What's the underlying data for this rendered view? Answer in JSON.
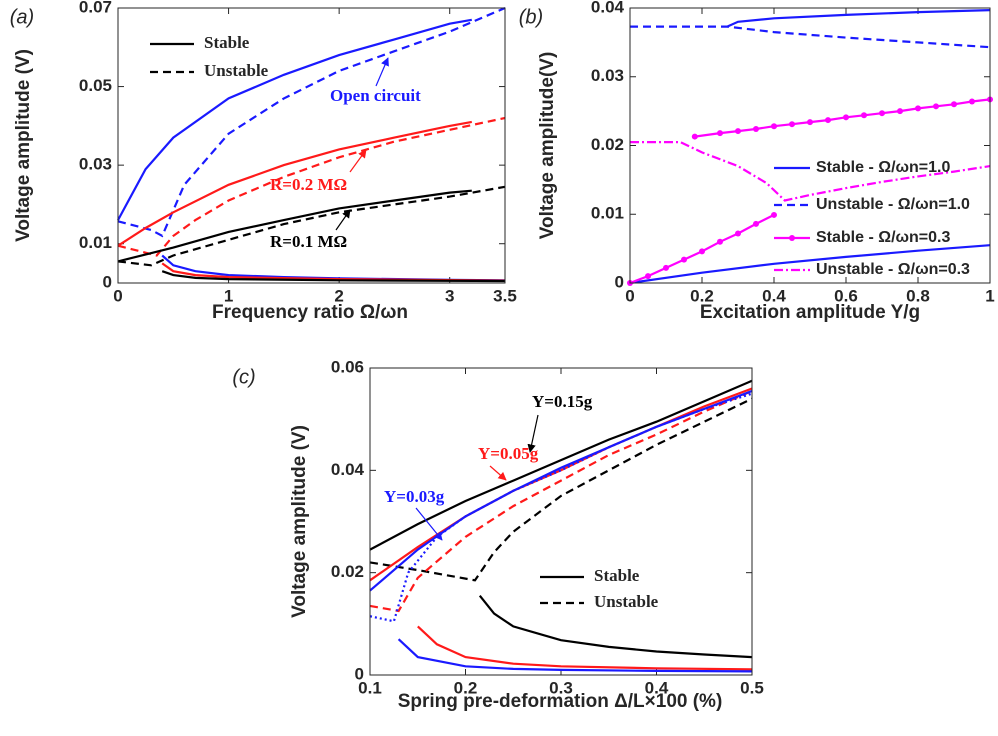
{
  "chart_data": [
    {
      "type": "line",
      "panel": "(a)",
      "xlabel": "Frequency ratio Ω/ωn",
      "ylabel": "Voltage amplitude (V)",
      "xlim": [
        0,
        3.5
      ],
      "xticks": [
        0,
        1,
        2,
        3,
        3.5
      ],
      "ylim": [
        0,
        0.07
      ],
      "yticks": [
        0,
        0.01,
        0.03,
        0.05,
        0.07
      ],
      "legend": [
        {
          "label": "Stable",
          "style": "solid"
        },
        {
          "label": "Unstable",
          "style": "dashed"
        }
      ],
      "annotations": [
        {
          "text": "Open circuit",
          "color": "#1a1aff"
        },
        {
          "text": "R=0.2 MΩ",
          "color": "#ff1a1a"
        },
        {
          "text": "R=0.1 MΩ",
          "color": "#000000"
        }
      ],
      "series": [
        {
          "color": "#1a1aff",
          "style": "solid",
          "x": [
            0,
            0.25,
            0.5,
            1,
            1.5,
            2,
            2.5,
            3,
            3.2
          ],
          "values": [
            0.016,
            0.029,
            0.037,
            0.047,
            0.053,
            0.058,
            0.062,
            0.066,
            0.067
          ]
        },
        {
          "color": "#1a1aff",
          "style": "dashed",
          "x": [
            0,
            0.3,
            0.4,
            0.6,
            1,
            1.5,
            2,
            2.5,
            3,
            3.5
          ],
          "values": [
            0.0157,
            0.0135,
            0.012,
            0.025,
            0.038,
            0.047,
            0.054,
            0.059,
            0.064,
            0.07
          ]
        },
        {
          "color": "#1a1aff",
          "style": "solid",
          "x": [
            0.4,
            0.5,
            0.7,
            1,
            1.5,
            2,
            3,
            3.5
          ],
          "values": [
            0.007,
            0.0045,
            0.003,
            0.002,
            0.0015,
            0.0012,
            0.0008,
            0.0007
          ]
        },
        {
          "color": "#ff1a1a",
          "style": "solid",
          "x": [
            0,
            0.25,
            0.5,
            1,
            1.5,
            2,
            2.5,
            3,
            3.2
          ],
          "values": [
            0.0095,
            0.014,
            0.018,
            0.025,
            0.03,
            0.034,
            0.037,
            0.04,
            0.041
          ]
        },
        {
          "color": "#ff1a1a",
          "style": "dashed",
          "x": [
            0,
            0.35,
            0.5,
            0.7,
            1,
            1.5,
            2,
            2.5,
            3,
            3.5
          ],
          "values": [
            0.0095,
            0.007,
            0.012,
            0.016,
            0.021,
            0.027,
            0.032,
            0.036,
            0.039,
            0.042
          ]
        },
        {
          "color": "#ff1a1a",
          "style": "solid",
          "x": [
            0.4,
            0.5,
            0.7,
            1,
            2,
            3.5
          ],
          "values": [
            0.005,
            0.003,
            0.002,
            0.0015,
            0.001,
            0.0006
          ]
        },
        {
          "color": "#000000",
          "style": "solid",
          "x": [
            0,
            0.5,
            1,
            1.5,
            2,
            2.5,
            3,
            3.2
          ],
          "values": [
            0.0055,
            0.009,
            0.013,
            0.016,
            0.019,
            0.021,
            0.023,
            0.0235
          ]
        },
        {
          "color": "#000000",
          "style": "dashed",
          "x": [
            0,
            0.3,
            0.5,
            1,
            1.5,
            2,
            2.5,
            3,
            3.5
          ],
          "values": [
            0.0055,
            0.0045,
            0.007,
            0.011,
            0.015,
            0.018,
            0.02,
            0.022,
            0.0245
          ]
        },
        {
          "color": "#000000",
          "style": "solid",
          "x": [
            0.4,
            0.5,
            0.7,
            1,
            2,
            3.5
          ],
          "values": [
            0.003,
            0.002,
            0.0013,
            0.001,
            0.0007,
            0.0005
          ]
        }
      ]
    },
    {
      "type": "line",
      "panel": "(b)",
      "xlabel": "Excitation amplitude Y/g",
      "ylabel": "Voltage amplitude(V)",
      "xlim": [
        0,
        1
      ],
      "xticks": [
        0,
        0.2,
        0.4,
        0.6,
        0.8,
        1
      ],
      "ylim": [
        0,
        0.04
      ],
      "yticks": [
        0,
        0.01,
        0.02,
        0.03,
        0.04
      ],
      "series": [
        {
          "name": "Stable - Ω/ωn=1.0",
          "color": "#1a1aff",
          "style": "solid",
          "x": [
            0,
            0.2,
            0.4,
            0.6,
            0.8,
            1
          ],
          "values": [
            0,
            0.0015,
            0.0028,
            0.0038,
            0.0047,
            0.0055
          ]
        },
        {
          "color": "#1a1aff",
          "style": "solid",
          "x": [
            0.27,
            0.3,
            0.4,
            0.6,
            0.8,
            1
          ],
          "values": [
            0.0373,
            0.038,
            0.0385,
            0.039,
            0.0394,
            0.0397
          ]
        },
        {
          "name": "Unstable - Ω/ωn=1.0",
          "color": "#1a1aff",
          "style": "dashed",
          "x": [
            0,
            0.27,
            0.4,
            0.6,
            0.8,
            1
          ],
          "values": [
            0.0373,
            0.0373,
            0.0365,
            0.0357,
            0.035,
            0.0343
          ]
        },
        {
          "name": "Stable - Ω/ωn=0.3",
          "color": "#ff00ff",
          "style": "solid",
          "marker": true,
          "x": [
            0,
            0.05,
            0.1,
            0.15,
            0.2,
            0.25,
            0.3,
            0.35,
            0.4
          ],
          "values": [
            0,
            0.001,
            0.0022,
            0.0034,
            0.0046,
            0.006,
            0.0072,
            0.0086,
            0.0099
          ]
        },
        {
          "color": "#ff00ff",
          "style": "solid",
          "marker": true,
          "x": [
            0.18,
            0.25,
            0.3,
            0.35,
            0.4,
            0.45,
            0.5,
            0.55,
            0.6,
            0.65,
            0.7,
            0.75,
            0.8,
            0.85,
            0.9,
            0.95,
            1
          ],
          "values": [
            0.0213,
            0.0218,
            0.0221,
            0.0224,
            0.0228,
            0.0231,
            0.0234,
            0.0237,
            0.0241,
            0.0244,
            0.0247,
            0.025,
            0.0254,
            0.0257,
            0.026,
            0.0264,
            0.0267
          ]
        },
        {
          "name": "Unstable - Ω/ωn=0.3",
          "color": "#ff00ff",
          "style": "dashdot",
          "x": [
            0,
            0.14,
            0.2,
            0.3,
            0.38,
            0.43,
            0.5,
            0.6,
            0.7,
            0.8,
            0.9,
            1
          ],
          "values": [
            0.0205,
            0.0205,
            0.019,
            0.017,
            0.0145,
            0.012,
            0.0128,
            0.0138,
            0.0147,
            0.0155,
            0.0162,
            0.017
          ]
        }
      ]
    },
    {
      "type": "line",
      "panel": "(c)",
      "xlabel": "Spring pre-deformation Δ/L×100 (%)",
      "ylabel": "Voltage amplitude (V)",
      "xlim": [
        0.1,
        0.5
      ],
      "xticks": [
        0.1,
        0.2,
        0.3,
        0.4,
        0.5
      ],
      "ylim": [
        0,
        0.06
      ],
      "yticks": [
        0,
        0.02,
        0.04,
        0.06
      ],
      "legend": [
        {
          "label": "Stable",
          "style": "solid"
        },
        {
          "label": "Unstable",
          "style": "dashed"
        }
      ],
      "annotations": [
        {
          "text": "Y=0.15g",
          "color": "#000000"
        },
        {
          "text": "Y=0.05g",
          "color": "#ff1a1a"
        },
        {
          "text": "Y=0.03g",
          "color": "#1a1aff"
        }
      ],
      "series": [
        {
          "color": "#000000",
          "style": "solid",
          "x": [
            0.1,
            0.15,
            0.2,
            0.25,
            0.3,
            0.35,
            0.4,
            0.45,
            0.5
          ],
          "values": [
            0.0245,
            0.0295,
            0.034,
            0.038,
            0.042,
            0.046,
            0.0495,
            0.0535,
            0.0575
          ]
        },
        {
          "color": "#000000",
          "style": "dashed",
          "x": [
            0.1,
            0.15,
            0.21,
            0.23,
            0.25,
            0.3,
            0.35,
            0.4,
            0.45,
            0.5
          ],
          "values": [
            0.022,
            0.0205,
            0.0185,
            0.024,
            0.028,
            0.035,
            0.04,
            0.045,
            0.0495,
            0.054
          ]
        },
        {
          "color": "#000000",
          "style": "solid",
          "x": [
            0.215,
            0.23,
            0.25,
            0.3,
            0.35,
            0.4,
            0.45,
            0.5
          ],
          "values": [
            0.0155,
            0.012,
            0.0095,
            0.0068,
            0.0055,
            0.0046,
            0.004,
            0.0035
          ]
        },
        {
          "color": "#ff1a1a",
          "style": "solid",
          "x": [
            0.1,
            0.15,
            0.2,
            0.25,
            0.3,
            0.35,
            0.4,
            0.45,
            0.5
          ],
          "values": [
            0.0185,
            0.025,
            0.031,
            0.036,
            0.04,
            0.0445,
            0.0485,
            0.0525,
            0.056
          ]
        },
        {
          "color": "#ff1a1a",
          "style": "dashed",
          "x": [
            0.1,
            0.13,
            0.15,
            0.2,
            0.25,
            0.3,
            0.35,
            0.4,
            0.45,
            0.5
          ],
          "values": [
            0.0135,
            0.0125,
            0.019,
            0.027,
            0.033,
            0.038,
            0.043,
            0.047,
            0.0515,
            0.0555
          ]
        },
        {
          "color": "#ff1a1a",
          "style": "solid",
          "x": [
            0.15,
            0.17,
            0.2,
            0.25,
            0.3,
            0.4,
            0.5
          ],
          "values": [
            0.0095,
            0.006,
            0.0035,
            0.0022,
            0.0017,
            0.0013,
            0.0011
          ]
        },
        {
          "color": "#1a1aff",
          "style": "solid",
          "x": [
            0.1,
            0.15,
            0.2,
            0.25,
            0.3,
            0.35,
            0.4,
            0.45,
            0.5
          ],
          "values": [
            0.0165,
            0.0245,
            0.031,
            0.036,
            0.0405,
            0.0445,
            0.0485,
            0.052,
            0.0555
          ]
        },
        {
          "color": "#1a1aff",
          "style": "dotted",
          "x": [
            0.1,
            0.125,
            0.14,
            0.17,
            0.2,
            0.25,
            0.3,
            0.35,
            0.4,
            0.45,
            0.5
          ],
          "values": [
            0.0115,
            0.0105,
            0.02,
            0.027,
            0.031,
            0.036,
            0.04,
            0.0445,
            0.0485,
            0.052,
            0.055
          ]
        },
        {
          "color": "#1a1aff",
          "style": "solid",
          "x": [
            0.13,
            0.15,
            0.2,
            0.25,
            0.3,
            0.4,
            0.5
          ],
          "values": [
            0.007,
            0.0035,
            0.0017,
            0.0012,
            0.001,
            0.0008,
            0.0007
          ]
        }
      ]
    }
  ]
}
